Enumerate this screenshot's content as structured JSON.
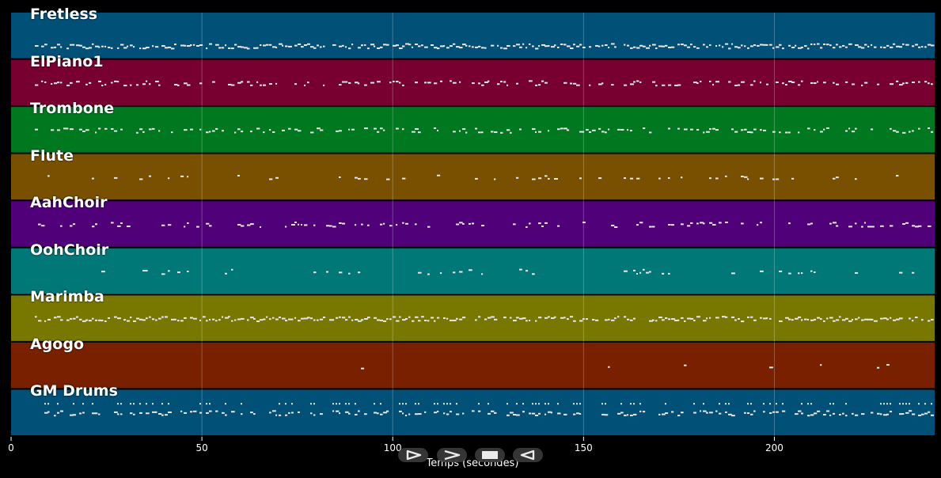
{
  "timeline": {
    "x_axis": {
      "label": "Temps (secondes)",
      "min": 0,
      "max": 242,
      "ticks": [
        0,
        50,
        100,
        150,
        200
      ]
    },
    "tracks": [
      {
        "name": "Fretless",
        "color": "#005078"
      },
      {
        "name": "ElPiano1",
        "color": "#780030"
      },
      {
        "name": "Trombone",
        "color": "#007820"
      },
      {
        "name": "Flute",
        "color": "#785000"
      },
      {
        "name": "AahChoir",
        "color": "#500078"
      },
      {
        "name": "OohChoir",
        "color": "#007878"
      },
      {
        "name": "Marimba",
        "color": "#787800"
      },
      {
        "name": "Agogo",
        "color": "#782000"
      },
      {
        "name": "GM Drums",
        "color": "#005078"
      }
    ]
  },
  "controls": [
    {
      "name": "play-icon"
    },
    {
      "name": "fast-forward-icon"
    },
    {
      "name": "stop-icon"
    },
    {
      "name": "rewind-icon"
    }
  ]
}
